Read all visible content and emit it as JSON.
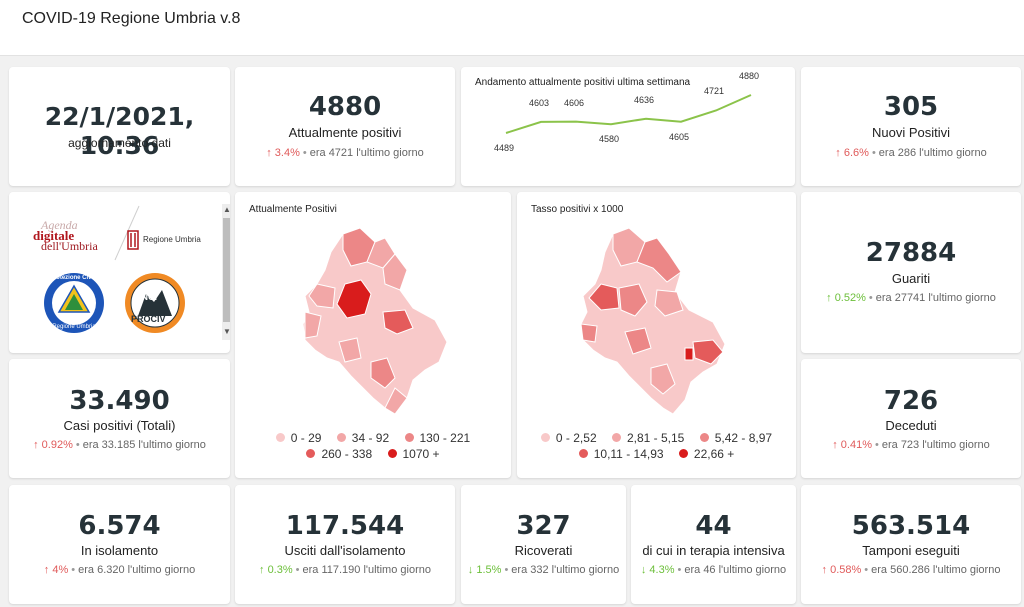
{
  "header": {
    "title": "COVID-19 Regione Umbria v.8"
  },
  "update": {
    "datetime": "22/1/2021, 10:36",
    "label": "aggiornamento dati"
  },
  "attualmente_positivi": {
    "value": "4880",
    "label": "Attualmente positivi",
    "pct": "3.4%",
    "prev": "era 4721  l'ultimo giorno"
  },
  "trend": {
    "title": "Andamento attualmente positivi ultima settimana",
    "points": [
      4489,
      4603,
      4606,
      4580,
      4636,
      4605,
      4721,
      4880
    ],
    "labels": [
      "4489",
      "4603",
      "4606",
      "4580",
      "4636",
      "4605",
      "4721",
      "4880"
    ],
    "color": "#8bc34a"
  },
  "nuovi_positivi": {
    "value": "305",
    "label": "Nuovi Positivi",
    "pct": "6.6%",
    "prev": "era 286  l'ultimo giorno"
  },
  "logos": {
    "agenda_line1": "Agenda",
    "agenda_line2": "digitale",
    "agenda_line3": "dell'Umbria",
    "regione": "Regione Umbria",
    "protezione_top": "Protezione Civile",
    "protezione_bottom": "Regione Umbria",
    "anci_line1": "ANCI",
    "anci_line2": "PROCIV"
  },
  "map_positivi": {
    "title": "Attualmente Positivi",
    "legend": [
      {
        "label": "0 - 29",
        "color": "#f8c9c9"
      },
      {
        "label": "34 - 92",
        "color": "#f2a7a7"
      },
      {
        "label": "130 - 221",
        "color": "#ec8787"
      },
      {
        "label": "260 - 338",
        "color": "#e45b5b"
      },
      {
        "label": "1070 +",
        "color": "#d91c1c"
      }
    ]
  },
  "map_tasso": {
    "title": "Tasso positivi x 1000",
    "legend": [
      {
        "label": "0 - 2,52",
        "color": "#f8c9c9"
      },
      {
        "label": "2,81 - 5,15",
        "color": "#f2a7a7"
      },
      {
        "label": "5,42 - 8,97",
        "color": "#ec8787"
      },
      {
        "label": "10,11 - 14,93",
        "color": "#e45b5b"
      },
      {
        "label": "22,66 +",
        "color": "#d91c1c"
      }
    ]
  },
  "guariti": {
    "value": "27884",
    "label": "Guariti",
    "pct": "0.52%",
    "prev": "era 27741  l'ultimo giorno"
  },
  "casi_totali": {
    "value": "33.490",
    "label": "Casi positivi (Totali)",
    "pct": "0.92%",
    "prev": "era 33.185  l'ultimo giorno"
  },
  "deceduti": {
    "value": "726",
    "label": "Deceduti",
    "pct": "0.41%",
    "prev": "era 723  l'ultimo giorno"
  },
  "isolamento": {
    "value": "6.574",
    "label": "In isolamento",
    "pct": "4%",
    "prev": "era 6.320  l'ultimo giorno"
  },
  "usciti": {
    "value": "117.544",
    "label": "Usciti dall'isolamento",
    "pct": "0.3%",
    "prev": "era 117.190  l'ultimo giorno"
  },
  "ricoverati": {
    "value": "327",
    "label": "Ricoverati",
    "pct": "1.5%",
    "prev": "era 332  l'ultimo giorno"
  },
  "terapia": {
    "value": "44",
    "label": "di cui in terapia intensiva",
    "pct": "4.3%",
    "prev": "era 46  l'ultimo giorno"
  },
  "tamponi": {
    "value": "563.514",
    "label": "Tamponi eseguiti",
    "pct": "0.58%",
    "prev": "era 560.286  l'ultimo giorno"
  }
}
